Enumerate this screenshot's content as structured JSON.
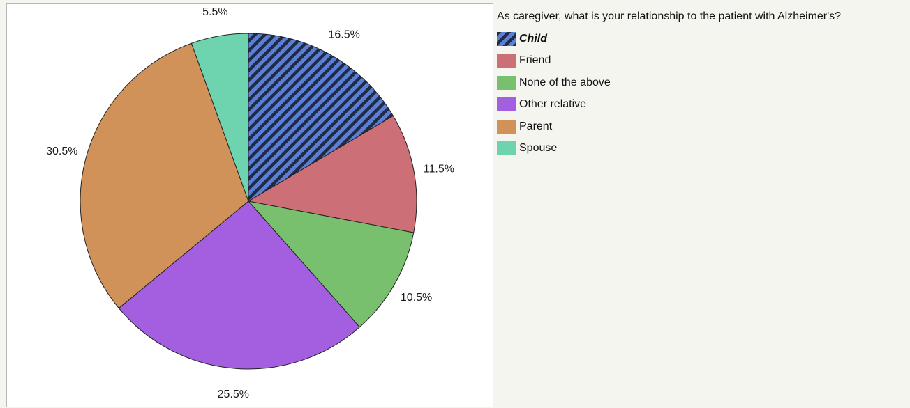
{
  "legend": {
    "title": "As caregiver, what is your relationship to the patient with Alzheimer's?"
  },
  "chart_data": {
    "type": "pie",
    "title": "",
    "legend_placement": "right",
    "slices": [
      {
        "label": "Child",
        "value": 16.5,
        "display": "16.5%",
        "color": "#5b7ed6",
        "pattern": "diagonal-stripes",
        "selected": true
      },
      {
        "label": "Friend",
        "value": 11.5,
        "display": "11.5%",
        "color": "#cd6f77",
        "selected": false
      },
      {
        "label": "None of the above",
        "value": 10.5,
        "display": "10.5%",
        "color": "#78c06e",
        "selected": false
      },
      {
        "label": "Other relative",
        "value": 25.5,
        "display": "25.5%",
        "color": "#a35fdf",
        "selected": false
      },
      {
        "label": "Parent",
        "value": 30.5,
        "display": "30.5%",
        "color": "#d09259",
        "selected": false
      },
      {
        "label": "Spouse",
        "value": 5.5,
        "display": "5.5%",
        "color": "#6ed4b0",
        "selected": false
      }
    ]
  }
}
